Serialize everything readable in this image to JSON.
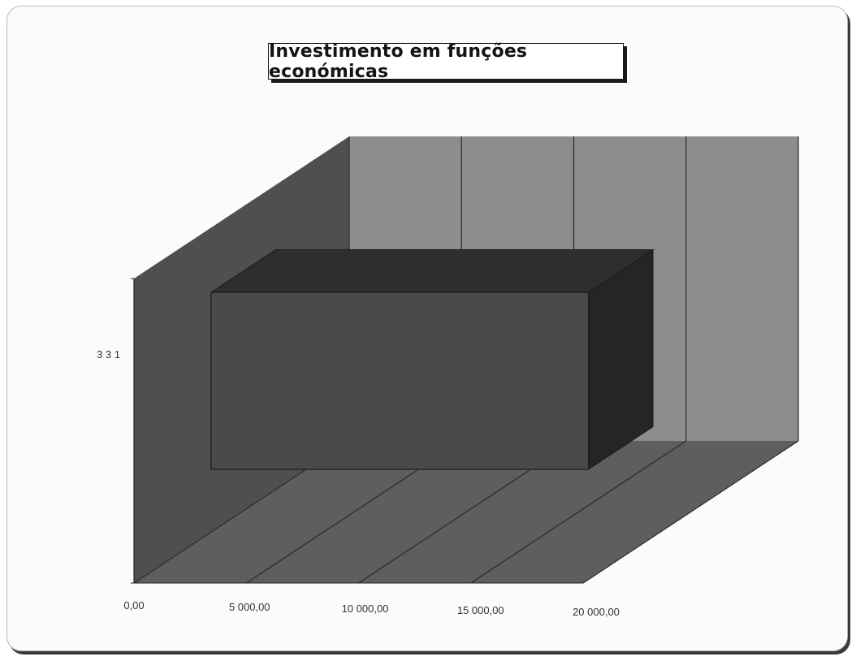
{
  "chart_data": {
    "type": "bar",
    "orientation": "horizontal",
    "style": "3d",
    "title": "Investimento em funções económicas",
    "categories": [
      "3 3 1"
    ],
    "values": [
      16800
    ],
    "xlim": [
      0,
      20000
    ],
    "x_ticks": [
      "0,00",
      "5 000,00",
      "10 000,00",
      "15 000,00",
      "20 000,00"
    ],
    "grid": true,
    "legend": "none",
    "colors": {
      "bar_front": "#4a4a4a",
      "bar_top": "#2e2e2e",
      "bar_side": "#252525",
      "back_wall": "#8d8d8d",
      "side_wall": "#4f4f4f",
      "floor": "#5e5e5e"
    }
  }
}
